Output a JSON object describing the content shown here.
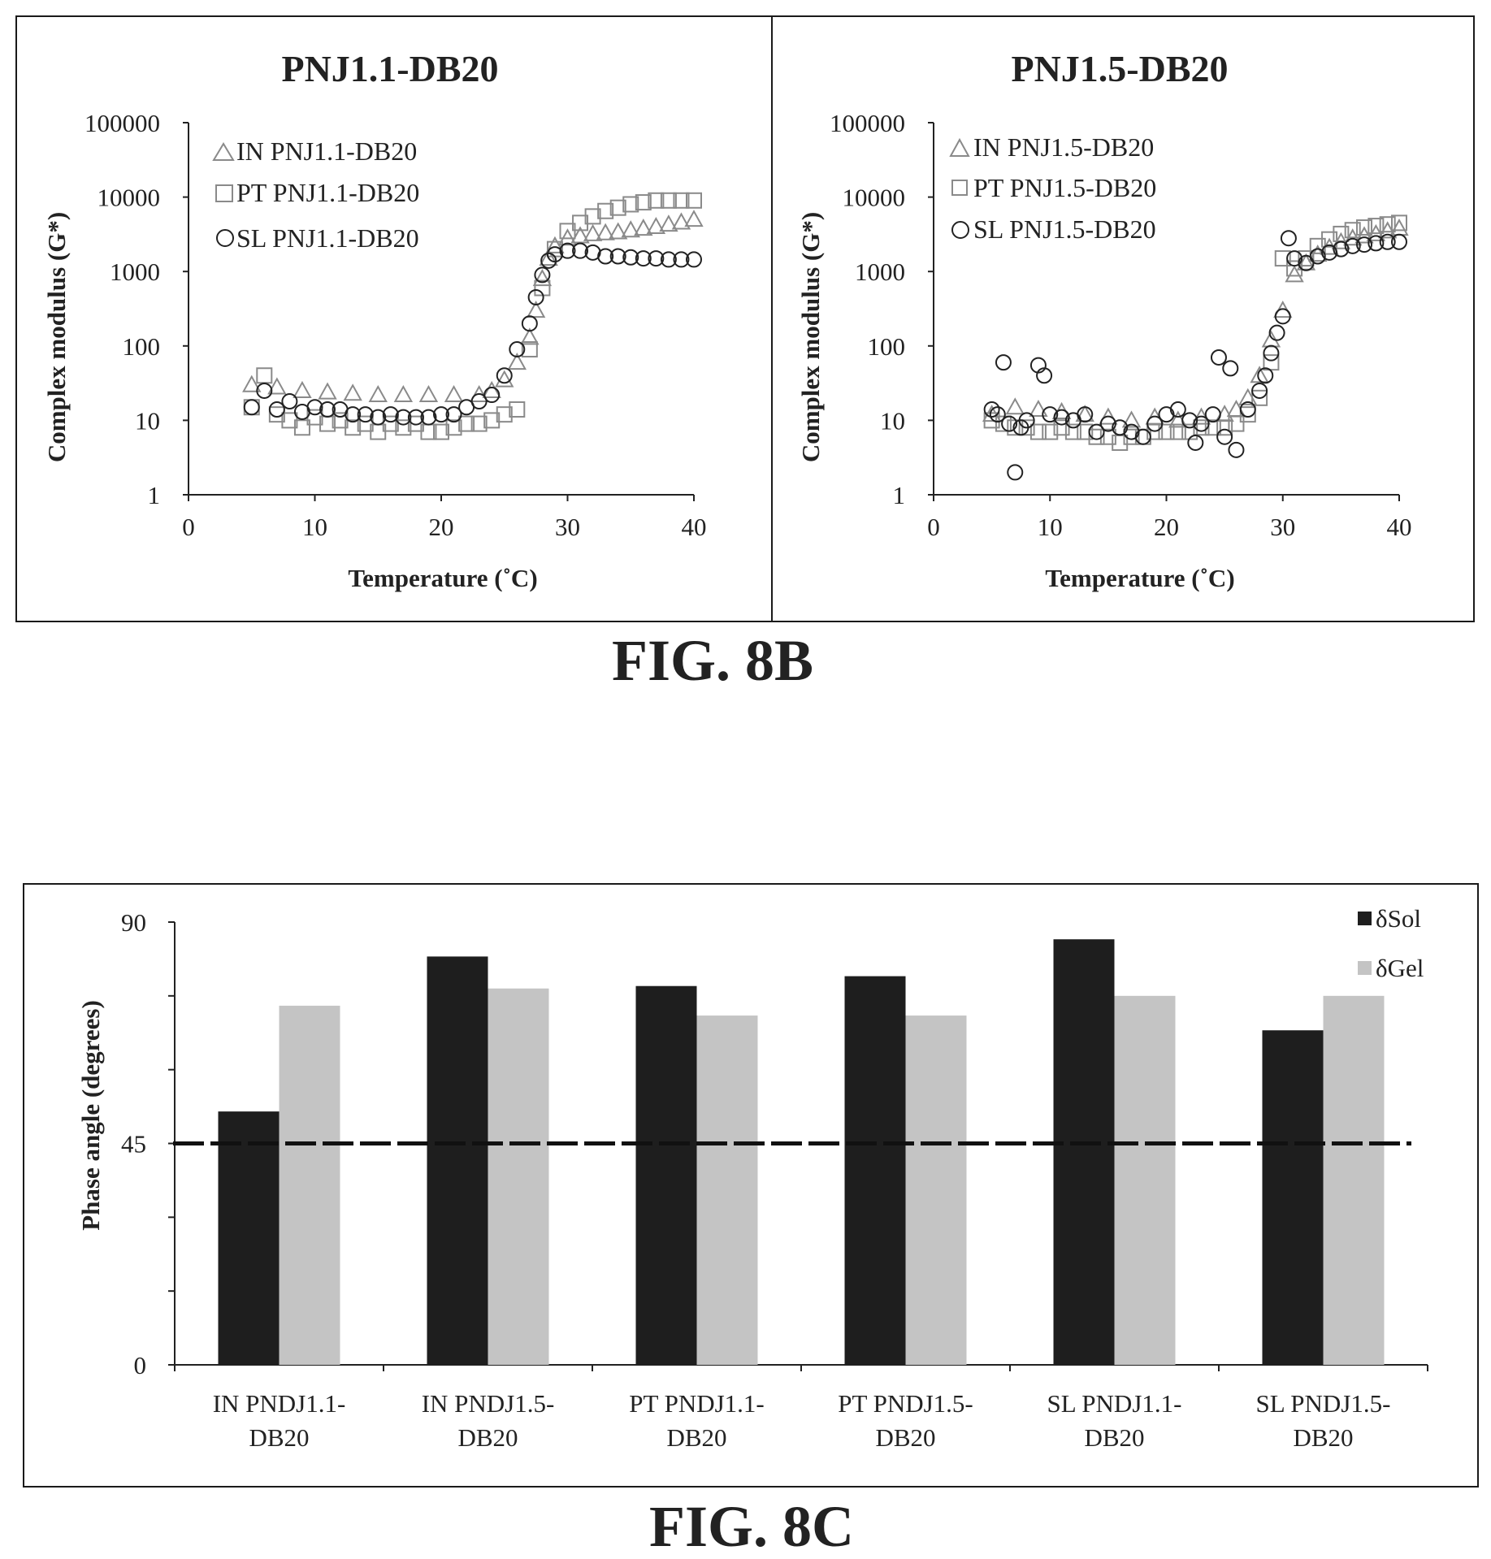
{
  "figures": {
    "fig_8b_caption": "FIG. 8B",
    "fig_8c_caption": "FIG. 8C"
  },
  "chart_data": [
    {
      "type": "scatter",
      "title": "PNJ1.1-DB20",
      "xlabel": "Temperature (˚C)",
      "ylabel": "Complex modulus (G*)",
      "y_scale": "log",
      "xlim": [
        0,
        40
      ],
      "ylim": [
        1,
        100000
      ],
      "x_ticks": [
        0,
        10,
        20,
        30,
        40
      ],
      "y_ticks": [
        1,
        10,
        100,
        1000,
        10000,
        100000
      ],
      "legend_position": "top-left",
      "series": [
        {
          "name": "IN PNJ1.1-DB20",
          "marker": "triangle",
          "x": [
            5,
            7,
            9,
            11,
            13,
            15,
            17,
            19,
            21,
            23,
            24,
            25,
            26,
            27,
            27.5,
            28,
            28.5,
            29,
            30,
            31,
            32,
            33,
            34,
            35,
            36,
            37,
            38,
            39,
            40
          ],
          "y": [
            30,
            28,
            25,
            24,
            23,
            22,
            22,
            22,
            22,
            22,
            25,
            35,
            60,
            130,
            300,
            800,
            1500,
            2200,
            2800,
            3000,
            3200,
            3300,
            3400,
            3600,
            3800,
            4000,
            4300,
            4600,
            5000
          ]
        },
        {
          "name": "PT PNJ1.1-DB20",
          "marker": "square",
          "x": [
            5,
            6,
            7,
            8,
            9,
            10,
            11,
            12,
            13,
            14,
            15,
            16,
            17,
            18,
            19,
            20,
            21,
            22,
            23,
            24,
            25,
            26,
            27,
            28,
            29,
            30,
            31,
            32,
            33,
            34,
            35,
            36,
            37,
            38,
            39,
            40
          ],
          "y": [
            15,
            40,
            12,
            10,
            8,
            11,
            9,
            10,
            8,
            9,
            7,
            9,
            8,
            9,
            7,
            7,
            8,
            9,
            9,
            10,
            12,
            14,
            90,
            600,
            2000,
            3500,
            4500,
            5500,
            6500,
            7200,
            8000,
            8500,
            9000,
            9000,
            9000,
            9000
          ]
        },
        {
          "name": "SL PNJ1.1-DB20",
          "marker": "circle",
          "x": [
            5,
            6,
            7,
            8,
            9,
            10,
            11,
            12,
            13,
            14,
            15,
            16,
            17,
            18,
            19,
            20,
            21,
            22,
            23,
            24,
            25,
            26,
            27,
            27.5,
            28,
            28.5,
            29,
            30,
            31,
            32,
            33,
            34,
            35,
            36,
            37,
            38,
            39,
            40
          ],
          "y": [
            15,
            25,
            14,
            18,
            13,
            15,
            14,
            14,
            12,
            12,
            11,
            12,
            11,
            11,
            11,
            12,
            12,
            15,
            18,
            22,
            40,
            90,
            200,
            450,
            900,
            1400,
            1700,
            1900,
            1900,
            1800,
            1600,
            1600,
            1550,
            1500,
            1500,
            1450,
            1450,
            1450
          ]
        }
      ]
    },
    {
      "type": "scatter",
      "title": "PNJ1.5-DB20",
      "xlabel": "Temperature (˚C)",
      "ylabel": "Complex modulus (G*)",
      "y_scale": "log",
      "xlim": [
        0,
        40
      ],
      "ylim": [
        1,
        100000
      ],
      "x_ticks": [
        0,
        10,
        20,
        30,
        40
      ],
      "y_ticks": [
        1,
        10,
        100,
        1000,
        10000,
        100000
      ],
      "legend_position": "top-left",
      "series": [
        {
          "name": "IN PNJ1.5-DB20",
          "marker": "triangle",
          "x": [
            5,
            7,
            9,
            11,
            13,
            15,
            17,
            19,
            21,
            23,
            25,
            26,
            27,
            28,
            29,
            30,
            31,
            32,
            33,
            34,
            35,
            36,
            37,
            38,
            39,
            40
          ],
          "y": [
            12,
            15,
            14,
            13,
            12,
            11,
            10,
            11,
            10,
            11,
            12,
            14,
            20,
            40,
            120,
            300,
            900,
            1300,
            1700,
            2100,
            2500,
            2800,
            3000,
            3200,
            3500,
            3800
          ]
        },
        {
          "name": "PT PNJ1.5-DB20",
          "marker": "square",
          "x": [
            5,
            6,
            7,
            8,
            9,
            10,
            11,
            12,
            13,
            14,
            15,
            16,
            17,
            18,
            19,
            20,
            21,
            22,
            23,
            24,
            25,
            26,
            27,
            28,
            29,
            30,
            31,
            32,
            33,
            34,
            35,
            36,
            37,
            38,
            39,
            40
          ],
          "y": [
            10,
            9,
            8,
            8,
            7,
            7,
            8,
            7,
            7,
            6,
            6,
            5,
            6,
            6,
            7,
            7,
            7,
            7,
            8,
            8,
            8,
            9,
            12,
            20,
            60,
            1500,
            1100,
            1500,
            2200,
            2700,
            3200,
            3600,
            3900,
            4100,
            4300,
            4500
          ]
        },
        {
          "name": "SL PNJ1.5-DB20",
          "marker": "circle",
          "x": [
            5,
            5.5,
            6,
            6.5,
            7,
            7.5,
            8,
            9,
            9.5,
            10,
            11,
            12,
            13,
            14,
            15,
            16,
            17,
            18,
            19,
            20,
            21,
            22,
            22.5,
            23,
            24,
            24.5,
            25,
            25.5,
            26,
            27,
            28,
            28.5,
            29,
            29.5,
            30,
            30.5,
            31,
            32,
            33,
            34,
            35,
            36,
            37,
            38,
            39,
            40
          ],
          "y": [
            14,
            12,
            60,
            9,
            2,
            8,
            10,
            55,
            40,
            12,
            11,
            10,
            12,
            7,
            9,
            8,
            7,
            6,
            9,
            12,
            14,
            10,
            5,
            9,
            12,
            70,
            6,
            50,
            4,
            14,
            25,
            40,
            80,
            150,
            250,
            2800,
            1500,
            1300,
            1600,
            1800,
            2000,
            2200,
            2300,
            2400,
            2500,
            2500
          ]
        }
      ]
    },
    {
      "type": "bar",
      "title": "",
      "xlabel": "",
      "ylabel": "Phase angle (degrees)",
      "ylim": [
        0,
        90
      ],
      "y_ticks": [
        0,
        45,
        90
      ],
      "reference_line": 45,
      "legend_position": "top-right",
      "categories": [
        [
          "IN PNDJ1.1-",
          "DB20"
        ],
        [
          "IN PNDJ1.5-",
          "DB20"
        ],
        [
          "PT PNDJ1.1-",
          "DB20"
        ],
        [
          "PT PNDJ1.5-",
          "DB20"
        ],
        [
          "SL PNDJ1.1-",
          "DB20"
        ],
        [
          "SL PNDJ1.5-",
          "DB20"
        ]
      ],
      "series": [
        {
          "name": "δSol",
          "values": [
            51.5,
            83,
            77,
            79,
            86.5,
            68
          ]
        },
        {
          "name": "δGel",
          "values": [
            73,
            76.5,
            71,
            71,
            75,
            75
          ]
        }
      ]
    }
  ],
  "colors": {
    "ink": "#222222",
    "marker": "#8a8a8a",
    "sol_bar": "#1e1e1e",
    "gel_bar": "#c4c4c4",
    "frame": "#1a1a1a"
  }
}
